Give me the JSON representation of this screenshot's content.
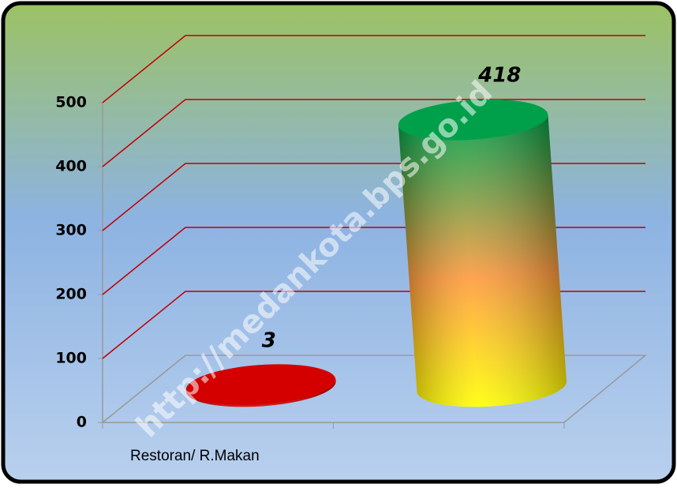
{
  "chart_data": {
    "type": "bar",
    "categories": [
      "Restoran/ R.Makan",
      null
    ],
    "values": [
      3,
      418
    ],
    "colors": [
      "#d40000",
      "#00a04a"
    ],
    "ylim": [
      0,
      500
    ],
    "yticks": [
      0,
      100,
      200,
      300,
      400,
      500
    ],
    "grid": true,
    "grid_color": "#c00000",
    "watermark": "http://medankota.bps.go.id"
  }
}
